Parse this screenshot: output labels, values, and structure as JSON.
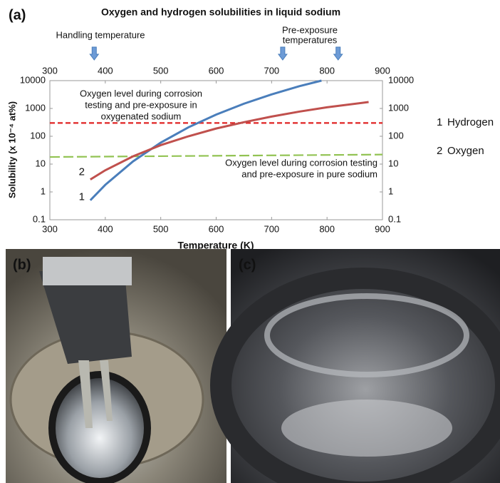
{
  "panel_labels": [
    "(a)",
    "(b)",
    "(c)"
  ],
  "chart_data": {
    "type": "line",
    "title": "Oxygen and hydrogen solubilities in liquid sodium",
    "xlabel": "Temperature (K)",
    "ylabel": "Solubility (x 10⁻⁴ at%)",
    "xlim": [
      300,
      900
    ],
    "xticks": [
      300,
      400,
      500,
      600,
      700,
      800,
      900
    ],
    "ylim": [
      0.1,
      10000
    ],
    "yticks": [
      0.1,
      1,
      10,
      100,
      1000,
      10000
    ],
    "yscale": "log",
    "series": [
      {
        "name": "Hydrogen",
        "label": "1",
        "color": "#4a7ebb",
        "x": [
          373,
          400,
          450,
          500,
          550,
          600,
          650,
          700,
          750,
          790
        ],
        "values": [
          0.5,
          1.8,
          12.5,
          59,
          210,
          600,
          1480,
          3200,
          6300,
          10000
        ]
      },
      {
        "name": "Oxygen",
        "label": "2",
        "color": "#c0504d",
        "x": [
          373,
          400,
          450,
          500,
          550,
          600,
          650,
          700,
          750,
          800,
          875
        ],
        "values": [
          2.8,
          6,
          19,
          48,
          100,
          190,
          320,
          510,
          770,
          1100,
          1700
        ]
      }
    ],
    "reference_lines": [
      {
        "color": "#e02424",
        "x": [
          300,
          900
        ],
        "values": [
          300,
          300
        ],
        "text": [
          "Oxygen level during corrosion",
          "testing and pre-exposure in",
          "oxygenated sodium"
        ]
      },
      {
        "color": "#92c353",
        "x": [
          300,
          900
        ],
        "values": [
          18,
          22
        ],
        "text": [
          "Oxygen level during corrosion testing",
          "and pre-exposure in pure sodium"
        ]
      }
    ],
    "arrow_annotations": [
      {
        "text": [
          "Handling temperature"
        ],
        "x": [
          380
        ]
      },
      {
        "text": [
          "Pre-exposure",
          "temperatures"
        ],
        "x": [
          720,
          820
        ]
      }
    ]
  }
}
